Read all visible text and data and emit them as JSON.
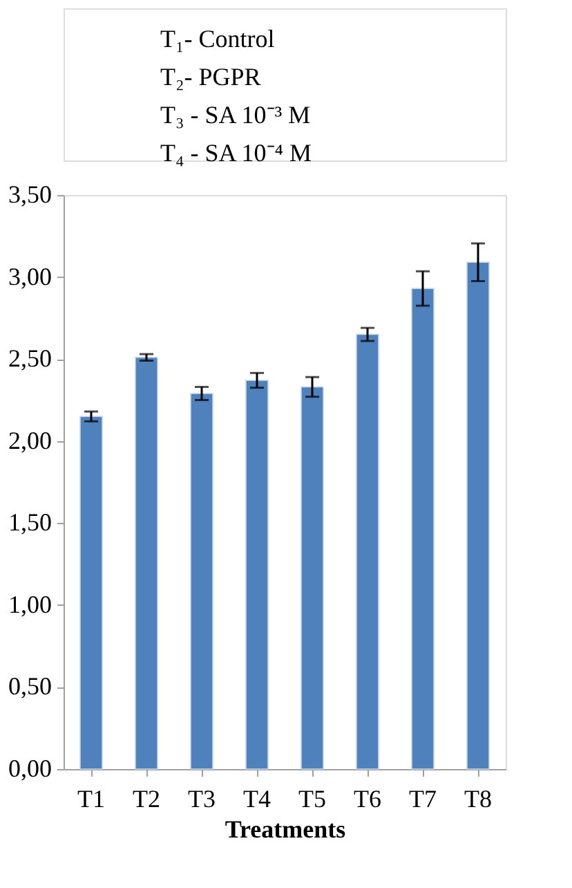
{
  "chart_data": {
    "type": "bar",
    "xlabel": "Treatments",
    "categories": [
      "T1",
      "T2",
      "T3",
      "T4",
      "T5",
      "T6",
      "T7",
      "T8"
    ],
    "values": [
      2.15,
      2.51,
      2.29,
      2.37,
      2.33,
      2.65,
      2.93,
      3.09
    ],
    "errors": [
      0.03,
      0.02,
      0.04,
      0.045,
      0.06,
      0.04,
      0.105,
      0.115
    ],
    "color": "#4f81bd",
    "ylim": [
      0,
      3.5
    ],
    "yticks": [
      {
        "value": 0,
        "label": "0,00"
      },
      {
        "value": 0.5,
        "label": "0,50"
      },
      {
        "value": 1,
        "label": "1,00"
      },
      {
        "value": 1.5,
        "label": "1,50"
      },
      {
        "value": 2,
        "label": "2,00"
      },
      {
        "value": 2.5,
        "label": "2,50"
      },
      {
        "value": 3,
        "label": "3,00"
      },
      {
        "value": 3.5,
        "label": "3,50"
      }
    ],
    "annotations": [
      "T₁- Control",
      "T₂- PGPR",
      "T₃ - SA 10⁻³ M",
      "T₄ - SA 10⁻⁴ M"
    ],
    "grid": false
  }
}
